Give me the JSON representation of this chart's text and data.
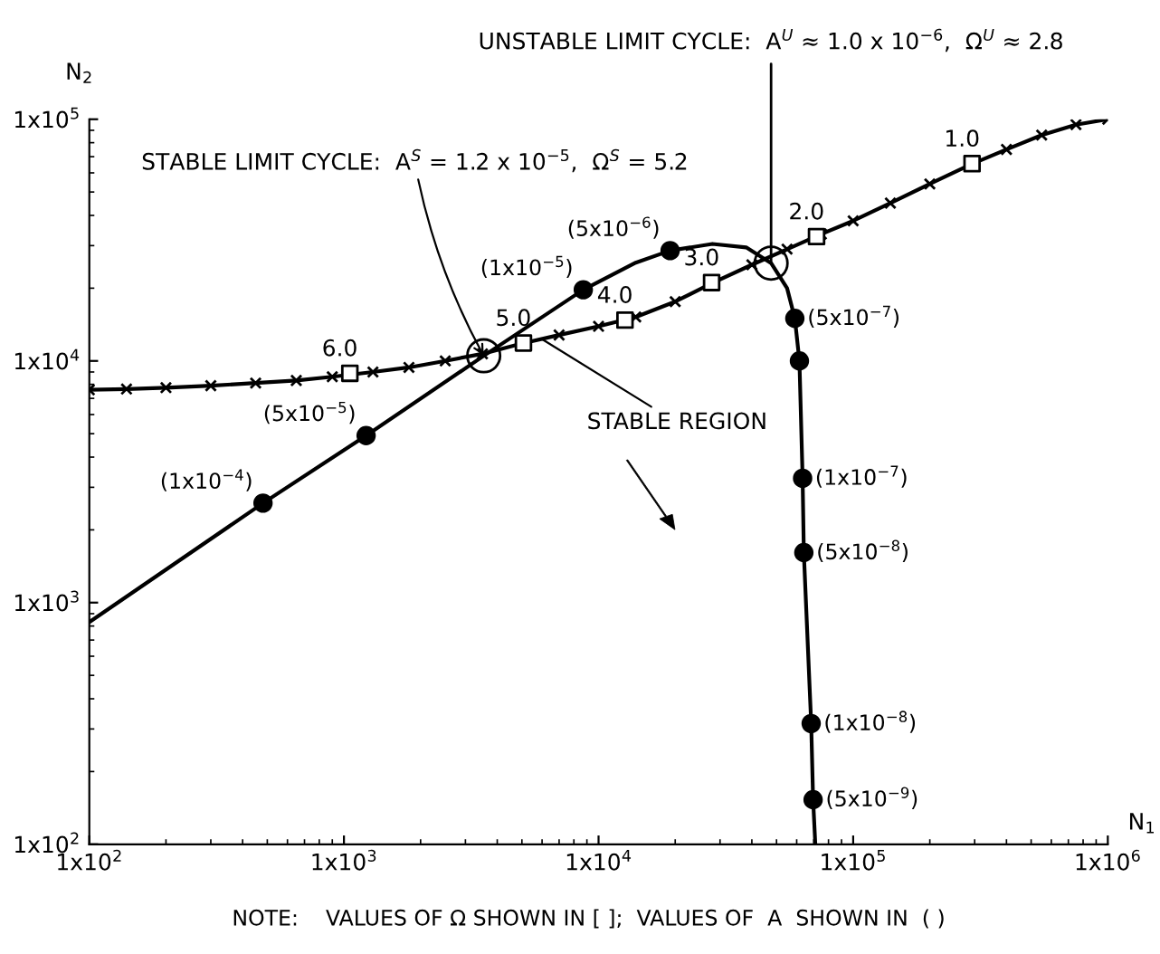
{
  "chart_data": {
    "type": "line",
    "xlabel": "N$_{1}$",
    "ylabel": "N$_{2}$",
    "log": "xy",
    "grid": false,
    "legend": false,
    "xlim": [
      100,
      1000000
    ],
    "ylim": [
      100,
      100000
    ],
    "xticks": [
      {
        "value": 100,
        "label": "1x10$^{2}$"
      },
      {
        "value": 1000,
        "label": "1x10$^{3}$"
      },
      {
        "value": 10000,
        "label": "1x10$^{4}$"
      },
      {
        "value": 100000,
        "label": "1x10$^{5}$"
      },
      {
        "value": 1000000,
        "label": "1x10$^{6}$"
      }
    ],
    "yticks": [
      {
        "value": 100,
        "label": "1x10$^{2}$"
      },
      {
        "value": 1000,
        "label": "1x10$^{3}$"
      },
      {
        "value": 10000,
        "label": "1x10$^{4}$"
      },
      {
        "value": 100000,
        "label": "1x10$^{5}$"
      }
    ],
    "series": [
      {
        "marker": "none",
        "color": "#000000",
        "x": [
          100,
          481,
          1222,
          3540,
          8710,
          14000,
          19100,
          28000,
          38000,
          47600,
          55000,
          59000,
          61500,
          63300,
          64000,
          68400,
          69600,
          71000
        ],
        "values": [
          830,
          2580,
          4910,
          10500,
          19700,
          25500,
          28600,
          30500,
          29500,
          25400,
          20000,
          15000,
          10000,
          3270,
          1610,
          316,
          153,
          100
        ]
      },
      {
        "type": "scatter",
        "marker": "circle",
        "color": "#000000",
        "x": [
          481,
          1222,
          8710,
          19100,
          59000,
          61500,
          63300,
          64000,
          68400,
          69600
        ],
        "values": [
          2580,
          4910,
          19700,
          28600,
          15000,
          10000,
          3270,
          1610,
          316,
          153
        ],
        "value_labels": [
          "(1x10$^{−4}$)",
          "(5x10$^{−5}$)",
          "(1x10$^{−5}$)",
          "(5x10$^{−6}$)",
          "(5x10$^{−7}$)",
          null,
          "(1x10$^{−7}$)",
          "(5x10$^{−8}$)",
          "(1x10$^{−8}$)",
          "(5x10$^{−9}$)"
        ]
      },
      {
        "marker": "cross",
        "color": "#000000",
        "x": [
          100,
          140,
          200,
          300,
          450,
          650,
          900,
          1300,
          1800,
          2500,
          3500,
          5000,
          7000,
          10000,
          14000,
          20000,
          28000,
          40000,
          55000,
          75000,
          100000,
          140000,
          200000,
          290000,
          400000,
          550000,
          750000,
          1000000
        ],
        "values": [
          7600,
          7650,
          7750,
          7900,
          8100,
          8300,
          8600,
          9000,
          9400,
          10000,
          10700,
          11800,
          12800,
          13900,
          15200,
          17600,
          21000,
          25000,
          29000,
          33500,
          38000,
          45000,
          54000,
          65000,
          75000,
          86000,
          95000,
          100000
        ]
      },
      {
        "type": "scatter",
        "marker": "square",
        "color": "#ffffff",
        "x": [
          1055,
          5070,
          12700,
          27800,
          71800,
          293000
        ],
        "values": [
          8890,
          11860,
          14760,
          21100,
          32700,
          65500
        ]
      },
      {
        "type": "scatter",
        "marker": "circle",
        "color": "#ffffff",
        "x": [
          3540,
          47600
        ],
        "values": [
          10500,
          25400
        ]
      }
    ],
    "annotations": [
      {
        "text": "UNSTABLE LIMIT CYCLE:  A$^{U}$ ≈ 1.0 x 10$^{−6}$,  Ω$^{U}$ ≈ 2.8",
        "x": 47600,
        "y": 25400
      },
      {
        "text": "STABLE LIMIT CYCLE:  A$^{S}$ = 1.2 x 10$^{−5}$,  Ω$^{S}$ = 5.2",
        "x": 3540,
        "y": 10500
      },
      {
        "text": "STABLE REGION",
        "x": 6000,
        "y": 12300
      },
      {
        "text": "6.0",
        "x": 1055,
        "y": 8890
      },
      {
        "text": "5.0",
        "x": 5070,
        "y": 11860
      },
      {
        "text": "4.0",
        "x": 12700,
        "y": 14760
      },
      {
        "text": "3.0",
        "x": 27800,
        "y": 21100
      },
      {
        "text": "2.0",
        "x": 71800,
        "y": 32700
      },
      {
        "text": "1.0",
        "x": 293000,
        "y": 65500
      },
      "NOTE:    VALUES OF Ω SHOWN IN [ ];  VALUES OF  A  SHOWN IN  ( )"
    ]
  }
}
